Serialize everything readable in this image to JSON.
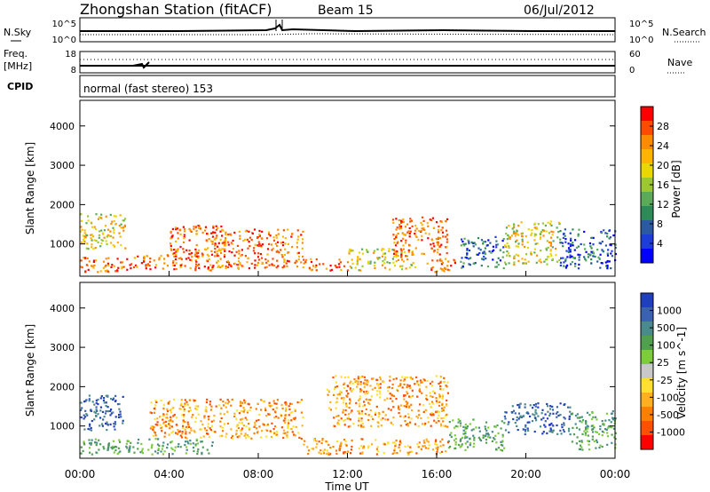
{
  "header": {
    "title": "Zhongshan Station (fitACF)",
    "beam": "Beam 15",
    "date": "06/Jul/2012"
  },
  "summary_panels": {
    "nsky_label": "N.Sky",
    "nsearch_label": "N.Search",
    "freq_label_line1": "Freq.",
    "freq_label_line2": "[MHz]",
    "nave_label": "Nave",
    "cpid_label": "CPID",
    "cpid_text": "normal (fast stereo) 153",
    "noise_left_top": "10^5",
    "noise_left_bottom": "10^0",
    "noise_right_top": "10^5",
    "noise_right_bottom": "10^0",
    "freq_ticks": [
      "18",
      "8"
    ],
    "nave_ticks": [
      "60",
      "0"
    ]
  },
  "time_axis": {
    "label": "Time UT",
    "ticks": [
      "00:00",
      "04:00",
      "08:00",
      "12:00",
      "16:00",
      "20:00",
      "00:00"
    ]
  },
  "chart_data": [
    {
      "type": "heatmap",
      "title": "",
      "xlabel": "Time UT",
      "ylabel": "Slant Range [km]",
      "x_range_hours": [
        0,
        24
      ],
      "ylim": [
        180,
        4650
      ],
      "yticks": [
        1000,
        2000,
        3000,
        4000
      ],
      "colorbar": {
        "label": "Power [dB]",
        "ticks": [
          "28",
          "24",
          "20",
          "16",
          "12",
          "8",
          "4"
        ],
        "colors": [
          "#ff0000",
          "#ff4a00",
          "#ff8c00",
          "#ffb400",
          "#e8d800",
          "#9bc832",
          "#5aaa5a",
          "#2e8b57",
          "#2c5aa0",
          "#1e3cd8",
          "#0000ff"
        ]
      },
      "echo_regions": [
        {
          "t": [
            0.0,
            2.5
          ],
          "r": [
            300,
            700
          ],
          "level": "high"
        },
        {
          "t": [
            0.0,
            2.0
          ],
          "r": [
            900,
            1800
          ],
          "level": "medium"
        },
        {
          "t": [
            2.5,
            6.0
          ],
          "r": [
            350,
            800
          ],
          "level": "high"
        },
        {
          "t": [
            4.0,
            6.5
          ],
          "r": [
            700,
            1500
          ],
          "level": "high"
        },
        {
          "t": [
            6.0,
            10.0
          ],
          "r": [
            400,
            1400
          ],
          "level": "high"
        },
        {
          "t": [
            10.0,
            12.0
          ],
          "r": [
            350,
            650
          ],
          "level": "high"
        },
        {
          "t": [
            12.0,
            15.0
          ],
          "r": [
            350,
            900
          ],
          "level": "medium"
        },
        {
          "t": [
            14.0,
            16.5
          ],
          "r": [
            700,
            1700
          ],
          "level": "high"
        },
        {
          "t": [
            15.5,
            17.0
          ],
          "r": [
            300,
            650
          ],
          "level": "high"
        },
        {
          "t": [
            17.0,
            19.0
          ],
          "r": [
            400,
            1200
          ],
          "level": "low"
        },
        {
          "t": [
            19.0,
            21.5
          ],
          "r": [
            500,
            1600
          ],
          "level": "medium"
        },
        {
          "t": [
            21.5,
            24.0
          ],
          "r": [
            400,
            1400
          ],
          "level": "low"
        }
      ]
    },
    {
      "type": "heatmap",
      "title": "",
      "xlabel": "Time UT",
      "ylabel": "Slant Range [km]",
      "x_range_hours": [
        0,
        24
      ],
      "ylim": [
        180,
        4650
      ],
      "yticks": [
        1000,
        2000,
        3000,
        4000
      ],
      "colorbar": {
        "label": "Velocity [m s^-1]",
        "ticks": [
          "1000",
          "500",
          "100",
          "25",
          "-25",
          "-100",
          "-500",
          "-1000"
        ],
        "colors": [
          "#1f3fbf",
          "#3a62b0",
          "#4a8a8a",
          "#50a050",
          "#7ccc3c",
          "#c8c8c8",
          "#ffe030",
          "#ffb020",
          "#ff8000",
          "#ff5000",
          "#ff0000"
        ]
      },
      "echo_regions": [
        {
          "t": [
            0.0,
            2.0
          ],
          "r": [
            900,
            1800
          ],
          "velocity": "blue"
        },
        {
          "t": [
            0.0,
            6.0
          ],
          "r": [
            300,
            700
          ],
          "velocity": "green"
        },
        {
          "t": [
            3.0,
            10.0
          ],
          "r": [
            700,
            1700
          ],
          "velocity": "orange"
        },
        {
          "t": [
            10.0,
            16.5
          ],
          "r": [
            300,
            700
          ],
          "velocity": "orange"
        },
        {
          "t": [
            11.0,
            16.5
          ],
          "r": [
            1000,
            2300
          ],
          "velocity": "orange"
        },
        {
          "t": [
            16.5,
            19.0
          ],
          "r": [
            400,
            1200
          ],
          "velocity": "green"
        },
        {
          "t": [
            19.0,
            22.0
          ],
          "r": [
            800,
            1600
          ],
          "velocity": "blue"
        },
        {
          "t": [
            22.0,
            24.0
          ],
          "r": [
            400,
            1400
          ],
          "velocity": "green"
        }
      ]
    }
  ]
}
